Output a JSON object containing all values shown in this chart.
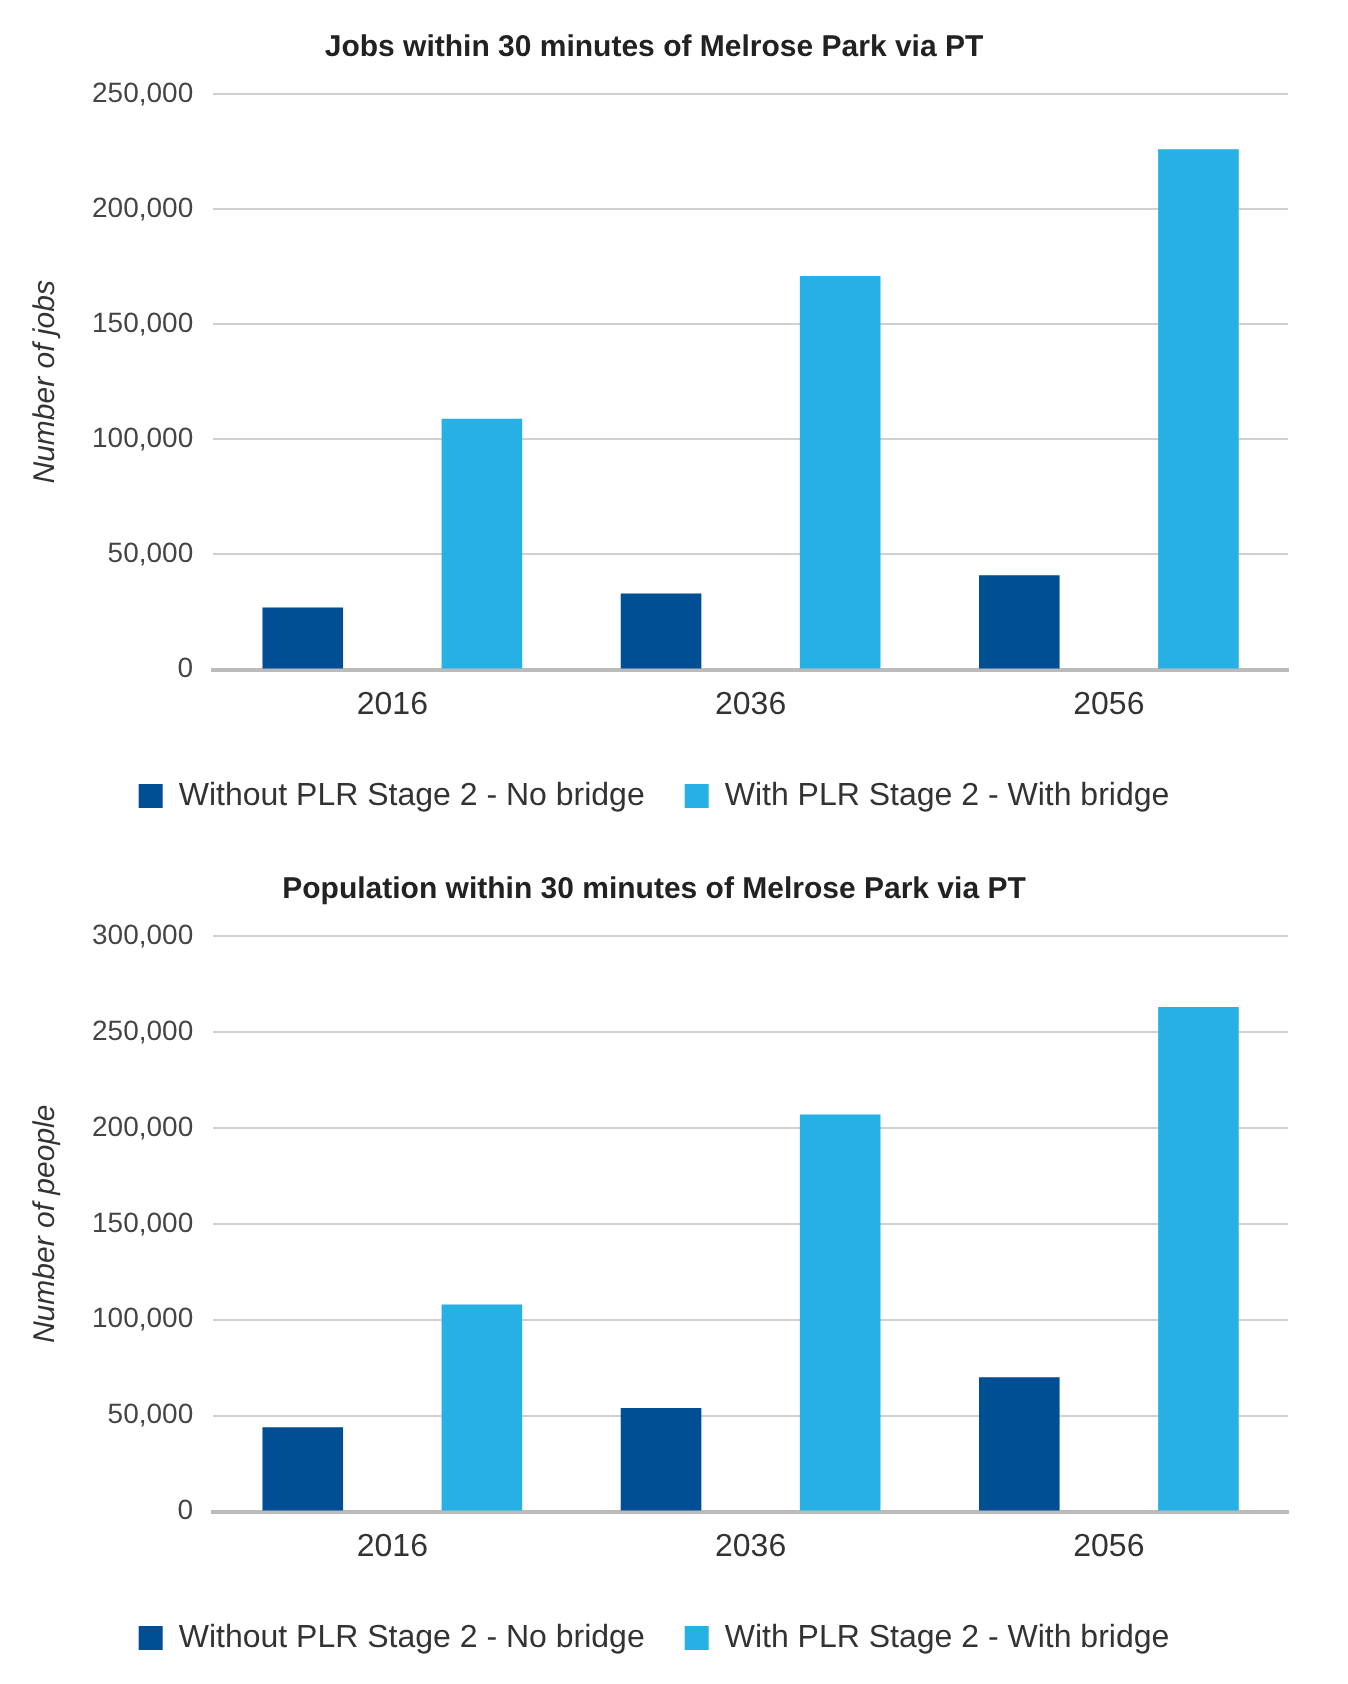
{
  "chart_data": [
    {
      "type": "bar",
      "title": "Jobs within 30 minutes of Melrose Park via PT",
      "ylabel": "Number of jobs",
      "categories": [
        "2016",
        "2036",
        "2056"
      ],
      "series": [
        {
          "name": "Without PLR Stage 2 - No bridge",
          "color": "#004f95",
          "values": [
            27000,
            33000,
            41000
          ]
        },
        {
          "name": "With PLR Stage 2 - With bridge",
          "color": "#26b0e4",
          "values": [
            109000,
            171000,
            226000
          ]
        }
      ],
      "ylim": [
        0,
        250000
      ],
      "yticks": [
        {
          "value": 0,
          "label": "0"
        },
        {
          "value": 50000,
          "label": "50,000"
        },
        {
          "value": 100000,
          "label": "100,000"
        },
        {
          "value": 150000,
          "label": "150,000"
        },
        {
          "value": 200000,
          "label": "200,000"
        },
        {
          "value": 250000,
          "label": "250,000"
        }
      ],
      "grid": "y",
      "legend": "bottom"
    },
    {
      "type": "bar",
      "title": "Population within 30 minutes of Melrose Park via PT",
      "ylabel": "Number of people",
      "categories": [
        "2016",
        "2036",
        "2056"
      ],
      "series": [
        {
          "name": "Without PLR Stage 2 - No bridge",
          "color": "#004f95",
          "values": [
            44000,
            54000,
            70000
          ]
        },
        {
          "name": "With PLR Stage 2 - With bridge",
          "color": "#26b0e4",
          "values": [
            108000,
            207000,
            263000
          ]
        }
      ],
      "ylim": [
        0,
        300000
      ],
      "yticks": [
        {
          "value": 0,
          "label": "0"
        },
        {
          "value": 50000,
          "label": "50,000"
        },
        {
          "value": 100000,
          "label": "100,000"
        },
        {
          "value": 150000,
          "label": "150,000"
        },
        {
          "value": 200000,
          "label": "200,000"
        },
        {
          "value": 250000,
          "label": "250,000"
        },
        {
          "value": 300000,
          "label": "300,000"
        }
      ],
      "grid": "y",
      "legend": "bottom"
    }
  ]
}
